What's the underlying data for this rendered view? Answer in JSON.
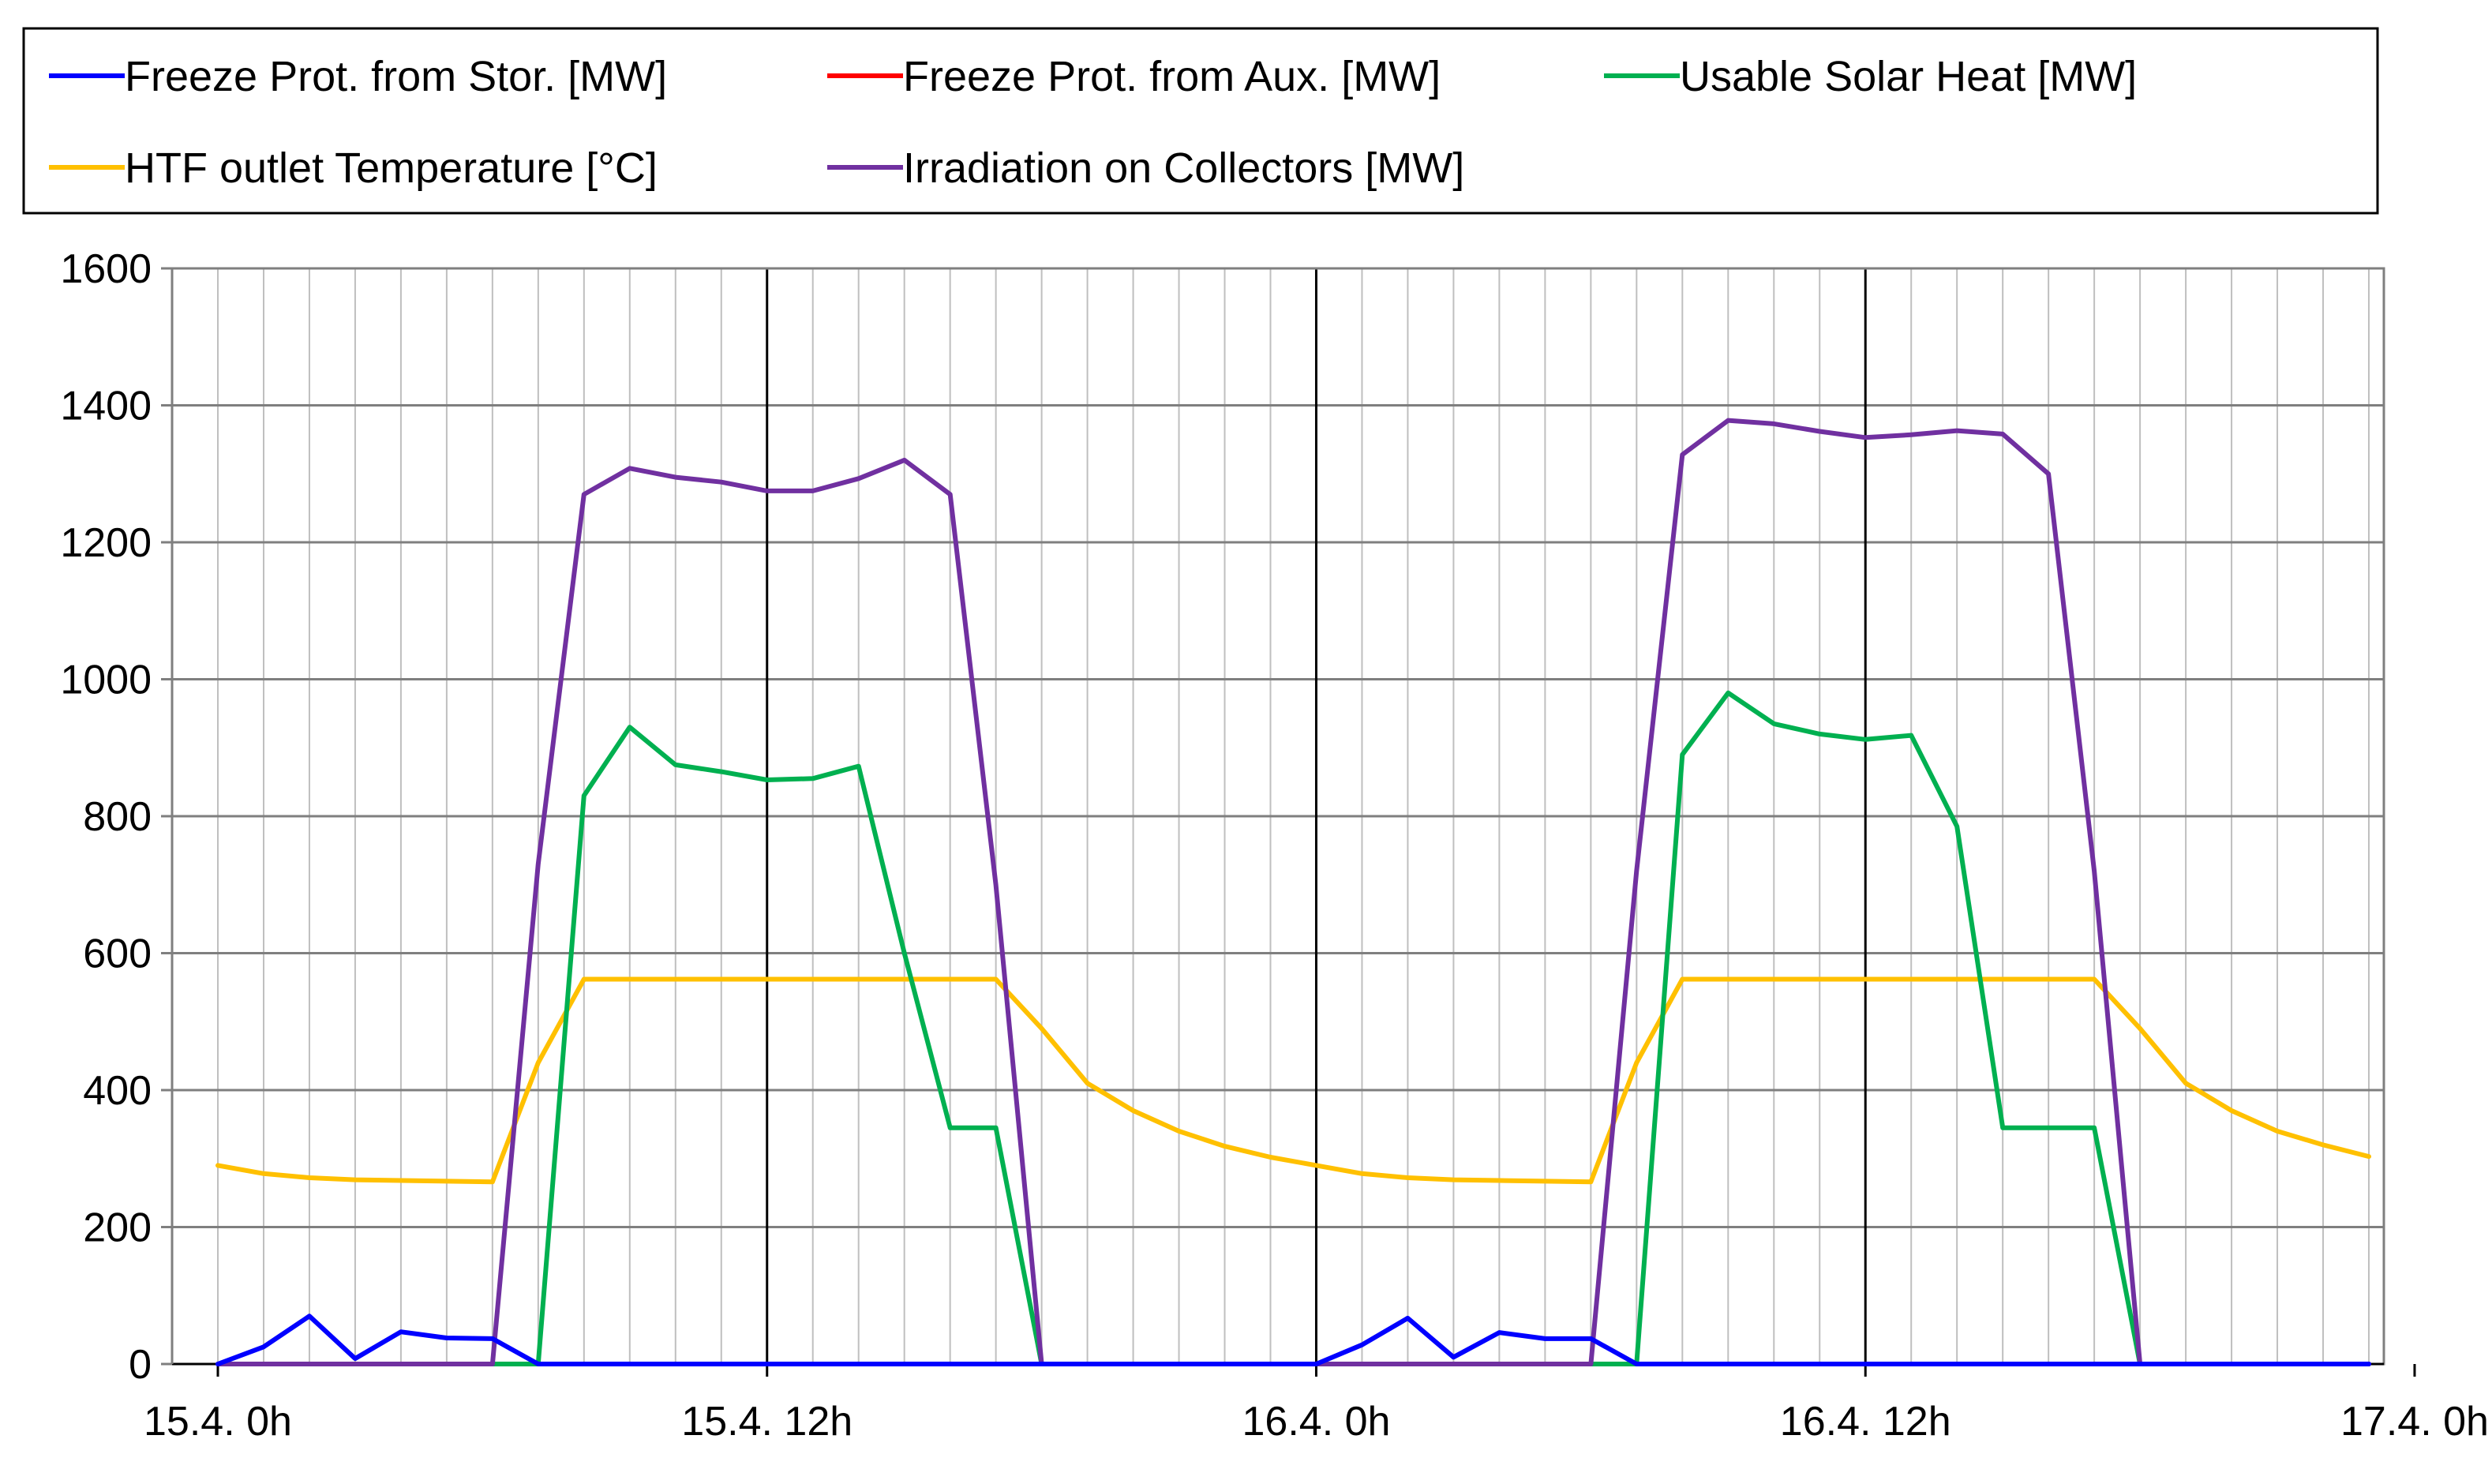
{
  "chart_data": {
    "type": "line",
    "title": "",
    "xlabel": "",
    "ylabel": "",
    "x_unit": "hours since 15.4. 0h",
    "xlim": [
      -1,
      47
    ],
    "ylim": [
      0,
      1600
    ],
    "yticks": [
      0,
      200,
      400,
      600,
      800,
      1000,
      1200,
      1400,
      1600
    ],
    "xticks": [
      {
        "x": 0,
        "label": "15.4. 0h"
      },
      {
        "x": 12,
        "label": "15.4. 12h"
      },
      {
        "x": 24,
        "label": "16.4. 0h"
      },
      {
        "x": 36,
        "label": "16.4. 12h"
      },
      {
        "x": 48,
        "label": "17.4. 0h"
      }
    ],
    "grid": true,
    "legend_position": "top (boxed, above plot)",
    "x": [
      0,
      1,
      2,
      3,
      4,
      5,
      6,
      7,
      8,
      9,
      10,
      11,
      12,
      13,
      14,
      15,
      16,
      17,
      18,
      19,
      20,
      21,
      22,
      23,
      24,
      25,
      26,
      27,
      28,
      29,
      30,
      31,
      32,
      33,
      34,
      35,
      36,
      37,
      38,
      39,
      40,
      41,
      42,
      43,
      44,
      45,
      46,
      47
    ],
    "series": [
      {
        "name": "Freeze Prot. from Stor. [MW]",
        "color": "#0000ff",
        "values": [
          0,
          25,
          70,
          8,
          47,
          38,
          37,
          0,
          0,
          0,
          0,
          0,
          0,
          0,
          0,
          0,
          0,
          0,
          0,
          0,
          0,
          0,
          0,
          0,
          0,
          28,
          67,
          10,
          46,
          37,
          37,
          0,
          0,
          0,
          0,
          0,
          0,
          0,
          0,
          0,
          0,
          0,
          0,
          0,
          0,
          0,
          0,
          0
        ]
      },
      {
        "name": "Freeze Prot. from Aux. [MW]",
        "color": "#ff0000",
        "values": [
          0,
          0,
          0,
          0,
          0,
          0,
          0,
          0,
          0,
          0,
          0,
          0,
          0,
          0,
          0,
          0,
          0,
          0,
          0,
          0,
          0,
          0,
          0,
          0,
          0,
          0,
          0,
          0,
          0,
          0,
          0,
          0,
          0,
          0,
          0,
          0,
          0,
          0,
          0,
          0,
          0,
          0,
          0,
          0,
          0,
          0,
          0,
          0
        ]
      },
      {
        "name": "Usable Solar Heat [MW]",
        "color": "#00b050",
        "values": [
          0,
          0,
          0,
          0,
          0,
          0,
          0,
          0,
          830,
          930,
          875,
          865,
          853,
          855,
          873,
          600,
          345,
          345,
          0,
          0,
          0,
          0,
          0,
          0,
          0,
          0,
          0,
          0,
          0,
          0,
          0,
          0,
          890,
          980,
          935,
          920,
          912,
          918,
          785,
          345,
          345,
          345,
          0,
          0,
          0,
          0,
          0,
          0
        ]
      },
      {
        "name": "HTF outlet Temperature [°C]",
        "color": "#ffc000",
        "values": [
          290,
          278,
          272,
          269,
          268,
          267,
          266,
          440,
          562,
          562,
          562,
          562,
          562,
          562,
          562,
          562,
          562,
          562,
          490,
          410,
          370,
          340,
          318,
          302,
          290,
          278,
          272,
          269,
          268,
          267,
          266,
          440,
          562,
          562,
          562,
          562,
          562,
          562,
          562,
          562,
          562,
          562,
          490,
          410,
          370,
          340,
          320,
          303
        ]
      },
      {
        "name": "Irradiation on Collectors [MW]",
        "color": "#7030a0",
        "values": [
          0,
          0,
          0,
          0,
          0,
          0,
          0,
          730,
          1270,
          1308,
          1295,
          1288,
          1275,
          1275,
          1293,
          1320,
          1270,
          700,
          0,
          0,
          0,
          0,
          0,
          0,
          0,
          0,
          0,
          0,
          0,
          0,
          0,
          720,
          1328,
          1378,
          1373,
          1362,
          1353,
          1357,
          1363,
          1358,
          1300,
          720,
          0,
          0,
          0,
          0,
          0,
          0
        ]
      }
    ]
  }
}
